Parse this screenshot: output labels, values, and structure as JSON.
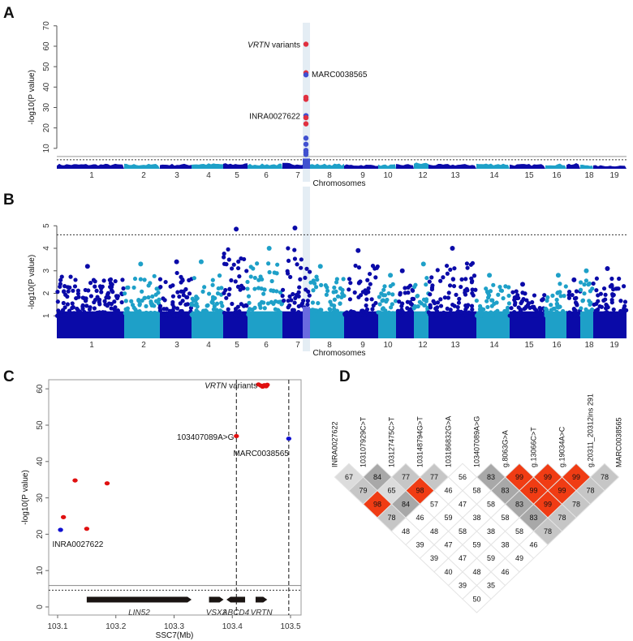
{
  "chart_data": [
    {
      "panel": "A",
      "type": "scatter",
      "xlabel": "Chromosomes",
      "ylabel": "-log10(P value)",
      "ylim": [
        0,
        70
      ],
      "yticks": [
        10,
        20,
        30,
        40,
        50,
        60,
        70
      ],
      "chromosome_labels": [
        "1",
        "2",
        "3",
        "4",
        "5",
        "6",
        "7",
        "8",
        "9",
        "10",
        "12",
        "13",
        "14",
        "15",
        "16",
        "18",
        "19"
      ],
      "colors": {
        "dark": "#0a0aa8",
        "light": "#1ea0c8",
        "highlight": "#d8e6f0",
        "red": "#e03040",
        "blue": "#4050d0"
      },
      "threshold_lines": [
        6.0,
        4.4
      ],
      "background_max_by_chromosome": [
        2.5,
        2.5,
        2.5,
        2.8,
        2.8,
        2.6,
        3,
        2.6,
        2.2,
        2.2,
        2.4,
        3.2,
        2.4,
        2.8,
        2.4,
        2.6,
        2.8,
        2.2,
        1.8
      ],
      "highlight_points": [
        {
          "chr": 7,
          "y": 61,
          "color": "red"
        },
        {
          "chr": 7,
          "y": 47,
          "color": "red"
        },
        {
          "chr": 7,
          "y": 46,
          "color": "blue"
        },
        {
          "chr": 7,
          "y": 35,
          "color": "red"
        },
        {
          "chr": 7,
          "y": 34,
          "color": "red"
        },
        {
          "chr": 7,
          "y": 26,
          "color": "blue"
        },
        {
          "chr": 7,
          "y": 25,
          "color": "red"
        },
        {
          "chr": 7,
          "y": 22,
          "color": "red"
        },
        {
          "chr": 7,
          "y": 15,
          "color": "blue"
        },
        {
          "chr": 7,
          "y": 12,
          "color": "blue"
        },
        {
          "chr": 7,
          "y": 9,
          "color": "blue"
        },
        {
          "chr": 7,
          "y": 8,
          "color": "blue"
        },
        {
          "chr": 7,
          "y": 7,
          "color": "blue"
        }
      ],
      "annotations": [
        {
          "text_italic": "VRTN",
          "text": " variants",
          "y": 61,
          "side": "left"
        },
        {
          "text": "MARC0038565",
          "y": 46.5,
          "side": "right"
        },
        {
          "text": "INRA0027622",
          "y": 26,
          "side": "left"
        }
      ]
    },
    {
      "panel": "B",
      "type": "scatter",
      "xlabel": "Chromosomes",
      "ylabel": "-log10(P value)",
      "ylim": [
        0,
        5
      ],
      "yticks": [
        1,
        2,
        3,
        4,
        5
      ],
      "chromosome_labels": [
        "1",
        "2",
        "3",
        "4",
        "5",
        "6",
        "7",
        "8",
        "9",
        "10",
        "12",
        "13",
        "14",
        "15",
        "16",
        "18",
        "19"
      ],
      "threshold_line": 4.6,
      "peak_by_chromosome": [
        3.2,
        3.3,
        3.4,
        3.4,
        4.85,
        4.0,
        4.9,
        3.2,
        3.9,
        2.8,
        3.0,
        3.3,
        4.0,
        2.8,
        2.4,
        2.8,
        2.6,
        3.0,
        3.1
      ]
    },
    {
      "panel": "C",
      "type": "scatter",
      "xlabel": "SSC7(Mb)",
      "ylabel": "-log10(P value)",
      "xlim": [
        103.08,
        103.52
      ],
      "ylim": [
        -3,
        62
      ],
      "xticks": [
        "103.1",
        "103.2",
        "103.3",
        "103.4",
        "103.5"
      ],
      "yticks": [
        "0",
        "10",
        "20",
        "30",
        "40",
        "50",
        "60"
      ],
      "threshold_lines": [
        5.9,
        4.6
      ],
      "vertical_lines": [
        103.407,
        103.497
      ],
      "points": [
        {
          "x": 103.105,
          "y": 21.2,
          "color": "blue"
        },
        {
          "x": 103.11,
          "y": 24.7,
          "color": "red"
        },
        {
          "x": 103.13,
          "y": 34.8,
          "color": "red"
        },
        {
          "x": 103.15,
          "y": 21.5,
          "color": "red"
        },
        {
          "x": 103.185,
          "y": 34.0,
          "color": "red"
        },
        {
          "x": 103.407,
          "y": 47.0,
          "color": "red"
        },
        {
          "x": 103.497,
          "y": 46.3,
          "color": "blue"
        },
        {
          "x": 103.445,
          "y": 61.2,
          "color": "red"
        },
        {
          "x": 103.449,
          "y": 60.9,
          "color": "red"
        },
        {
          "x": 103.452,
          "y": 60.6,
          "color": "red"
        },
        {
          "x": 103.455,
          "y": 61.0,
          "color": "red"
        },
        {
          "x": 103.458,
          "y": 60.7,
          "color": "red"
        },
        {
          "x": 103.46,
          "y": 61.1,
          "color": "red"
        }
      ],
      "labels": {
        "vrtn_italic": "VRTN",
        "vrtn_rest": " variants",
        "snp": "103407089A>G",
        "marc": "MARC0038565",
        "inra": "INRA0027622"
      },
      "genes": [
        {
          "name": "LIN52",
          "start": 103.15,
          "end": 103.33,
          "strand": "+"
        },
        {
          "name": "VSX2",
          "start": 103.36,
          "end": 103.385,
          "strand": "+"
        },
        {
          "name": "ABCD4",
          "start": 103.422,
          "end": 103.39,
          "strand": "-"
        },
        {
          "name": "VRTN",
          "start": 103.44,
          "end": 103.46,
          "strand": "+"
        }
      ]
    },
    {
      "panel": "D",
      "type": "heatmap",
      "markers": [
        "INRA0027622",
        "103107929C>T",
        "103127475C>T",
        "103148794G>T",
        "103186832G>A",
        "103407089A>G",
        "g.8063G>A",
        "g.13066C>T",
        "g.19034A>C",
        "g.20311_20312ins 291",
        "MARC0038565"
      ],
      "rows": [
        [
          67,
          84,
          77,
          77,
          56,
          83,
          99,
          99,
          99,
          78
        ],
        [
          79,
          65,
          98,
          46,
          58,
          83,
          99,
          99,
          78
        ],
        [
          98,
          84,
          57,
          47,
          58,
          83,
          99,
          78
        ],
        [
          78,
          46,
          59,
          38,
          58,
          83,
          78
        ],
        [
          48,
          48,
          58,
          38,
          58,
          78
        ],
        [
          39,
          47,
          59,
          38,
          46
        ],
        [
          39,
          47,
          59,
          49
        ],
        [
          40,
          48,
          46
        ],
        [
          39,
          35
        ],
        [
          50
        ]
      ],
      "colors": {
        "high": "#f03c14",
        "g80": "#a8a8a8",
        "g70": "#c6c6c6",
        "g60": "#dcdcdc",
        "low": "#ffffff"
      }
    }
  ],
  "panel_letters": [
    "A",
    "B",
    "C",
    "D"
  ]
}
